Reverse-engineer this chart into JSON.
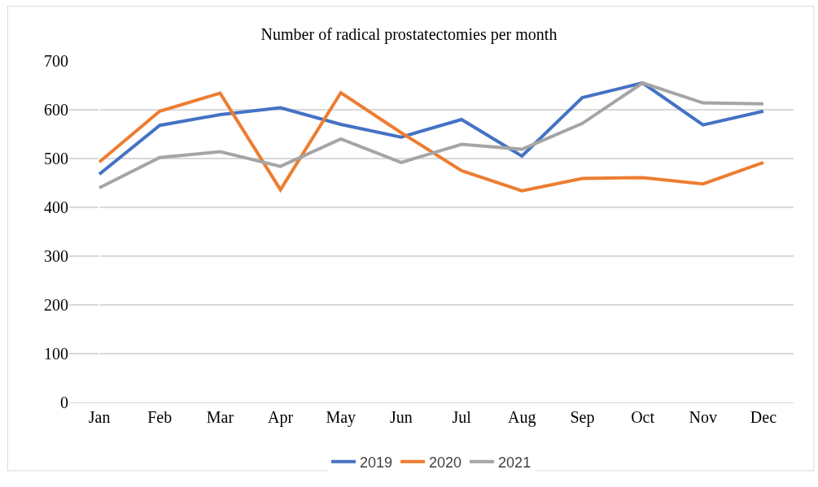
{
  "chart_data": {
    "type": "line",
    "title": "Number of radical prostatectomies per month",
    "categories": [
      "Jan",
      "Feb",
      "Mar",
      "Apr",
      "May",
      "Jun",
      "Jul",
      "Aug",
      "Sep",
      "Oct",
      "Nov",
      "Dec"
    ],
    "series": [
      {
        "name": "2019",
        "color": "#4472c4",
        "values": [
          468,
          568,
          590,
          604,
          570,
          544,
          580,
          505,
          625,
          655,
          569,
          597
        ]
      },
      {
        "name": "2020",
        "color": "#ed7d31",
        "values": [
          493,
          597,
          634,
          436,
          635,
          553,
          475,
          434,
          459,
          461,
          448,
          492
        ]
      },
      {
        "name": "2021",
        "color": "#a5a5a5",
        "values": [
          440,
          502,
          514,
          484,
          540,
          492,
          529,
          519,
          572,
          655,
          614,
          612
        ]
      }
    ],
    "ylim": [
      0,
      700
    ],
    "yticks": [
      0,
      100,
      200,
      300,
      400,
      500,
      600,
      700
    ],
    "grid": "y",
    "legend": "bottom",
    "marker": "none",
    "line_style": "solid"
  }
}
